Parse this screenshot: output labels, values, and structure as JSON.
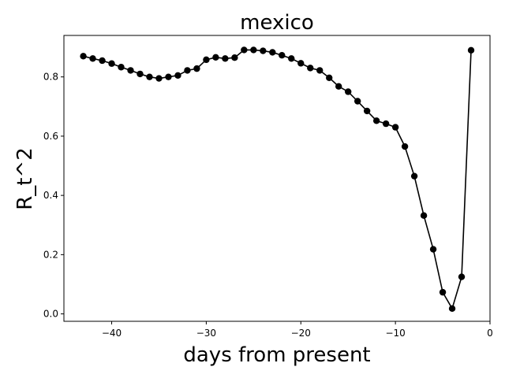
{
  "chart_data": {
    "type": "line",
    "title": "mexico",
    "xlabel": "days from present",
    "ylabel": "R_t^2",
    "xlim": [
      -45.05,
      0
    ],
    "ylim": [
      -0.025,
      0.94
    ],
    "xticks": [
      -40,
      -30,
      -20,
      -10,
      0
    ],
    "yticks": [
      0.0,
      0.2,
      0.4,
      0.6,
      0.8
    ],
    "xtick_labels": [
      "−40",
      "−30",
      "−20",
      "−10",
      "0"
    ],
    "ytick_labels": [
      "0.0",
      "0.2",
      "0.4",
      "0.6",
      "0.8"
    ],
    "grid": false,
    "colors": {
      "line": "#000000",
      "marker": "#000000",
      "axes": "#000000"
    },
    "series": [
      {
        "x": [
          -43,
          -42,
          -41,
          -40,
          -39,
          -38,
          -37,
          -36,
          -35,
          -34,
          -33,
          -32,
          -31,
          -30,
          -29,
          -28,
          -27,
          -26,
          -25,
          -24,
          -23,
          -22,
          -21,
          -20,
          -19,
          -18,
          -17,
          -16,
          -15,
          -14,
          -13,
          -12,
          -11,
          -10,
          -9,
          -8,
          -7,
          -6,
          -5,
          -4,
          -3,
          -2
        ],
        "values": [
          0.87,
          0.862,
          0.855,
          0.845,
          0.833,
          0.822,
          0.81,
          0.8,
          0.795,
          0.8,
          0.805,
          0.822,
          0.828,
          0.858,
          0.866,
          0.862,
          0.865,
          0.891,
          0.891,
          0.888,
          0.883,
          0.873,
          0.862,
          0.846,
          0.83,
          0.822,
          0.797,
          0.768,
          0.75,
          0.718,
          0.685,
          0.652,
          0.642,
          0.63,
          0.565,
          0.465,
          0.332,
          0.218,
          0.073,
          0.018,
          0.125,
          0.89
        ]
      }
    ]
  }
}
